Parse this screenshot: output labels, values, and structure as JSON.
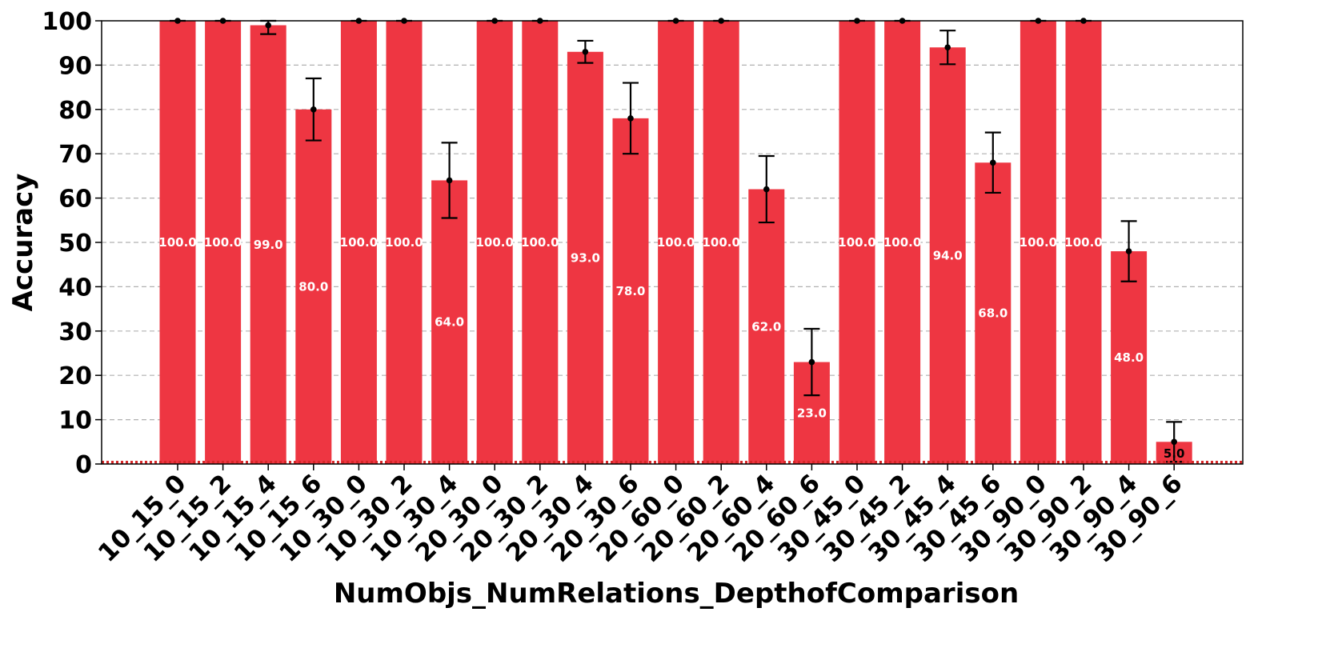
{
  "chart_data": {
    "type": "bar",
    "title": "",
    "xlabel": "NumObjs_NumRelations_DepthofComparison",
    "ylabel": "Accuracy",
    "ylim": [
      0,
      100
    ],
    "yticks": [
      0,
      10,
      20,
      30,
      40,
      50,
      60,
      70,
      80,
      90,
      100
    ],
    "grid": "horizontal dashed",
    "legend": "none",
    "categories": [
      "10_15_0",
      "10_15_2",
      "10_15_4",
      "10_15_6",
      "10_30_0",
      "10_30_2",
      "10_30_4",
      "20_30_0",
      "20_30_2",
      "20_30_4",
      "20_30_6",
      "20_60_0",
      "20_60_2",
      "20_60_4",
      "20_60_6",
      "30_45_0",
      "30_45_2",
      "30_45_4",
      "30_45_6",
      "30_90_0",
      "30_90_2",
      "30_90_4",
      "30_90_6"
    ],
    "values": [
      100,
      100,
      99,
      80,
      100,
      100,
      64,
      100,
      100,
      93,
      78,
      100,
      100,
      62,
      23,
      100,
      100,
      94,
      68,
      100,
      100,
      48,
      5
    ],
    "error_low": [
      100,
      100,
      97,
      73,
      100,
      100,
      55.5,
      100,
      100,
      90.5,
      70,
      100,
      100,
      54.5,
      15.5,
      100,
      100,
      90.2,
      61.2,
      100,
      100,
      41.2,
      0.5
    ],
    "error_high": [
      100,
      100,
      100,
      87,
      100,
      100,
      72.5,
      100,
      100,
      95.5,
      86,
      100,
      100,
      69.5,
      30.5,
      100,
      100,
      97.8,
      74.8,
      100,
      100,
      54.8,
      9.5
    ],
    "data_labels": [
      "100.0",
      "100.0",
      "99.0",
      "80.0",
      "100.0",
      "100.0",
      "64.0",
      "100.0",
      "100.0",
      "93.0",
      "78.0",
      "100.0",
      "100.0",
      "62.0",
      "23.0",
      "100.0",
      "100.0",
      "94.0",
      "68.0",
      "100.0",
      "100.0",
      "48.0",
      "5.0"
    ],
    "colors": {
      "bar": "#ee3642",
      "baseline": "#d62728",
      "grid": "#b0b0b0",
      "label_on_bar": "#ffffff",
      "label_small_bar": "#000000"
    }
  }
}
